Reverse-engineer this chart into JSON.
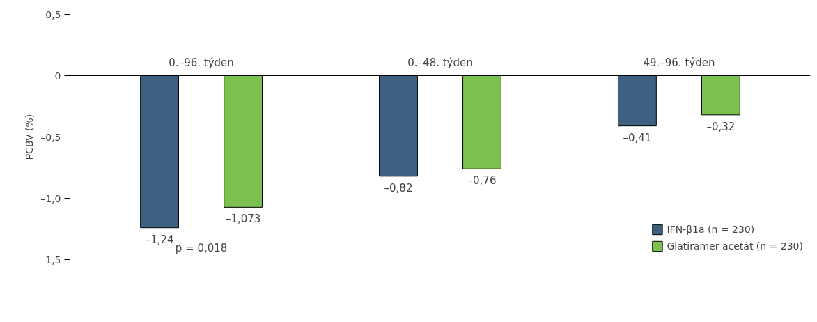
{
  "chart_data": {
    "type": "bar",
    "ylabel": "PCBV (%)",
    "categories": [
      "0.–96. týden",
      "0.–48. týden",
      "49.–96. týden"
    ],
    "series": [
      {
        "name": "IFN-β1a (n = 230)",
        "color": "#3d5f80",
        "values": [
          -1.24,
          -0.82,
          -0.41
        ],
        "value_labels": [
          "–1,24",
          "–0,82",
          "–0,41"
        ]
      },
      {
        "name": "Glatiramer acetát (n = 230)",
        "color": "#7cc050",
        "values": [
          -1.073,
          -0.76,
          -0.32
        ],
        "value_labels": [
          "–1,073",
          "–0,76",
          "–0,32"
        ]
      }
    ],
    "ylim": [
      -1.5,
      0.5
    ],
    "yticks": [
      {
        "value": 0.5,
        "label": "0,5"
      },
      0,
      {
        "value": -0.5,
        "label": "–0,5"
      },
      {
        "value": -1.0,
        "label": "–1,0"
      },
      {
        "value": -1.5,
        "label": "–1,5"
      }
    ],
    "annotations": [
      "p = 0,018"
    ],
    "grid": false,
    "legend": "bottom right"
  }
}
